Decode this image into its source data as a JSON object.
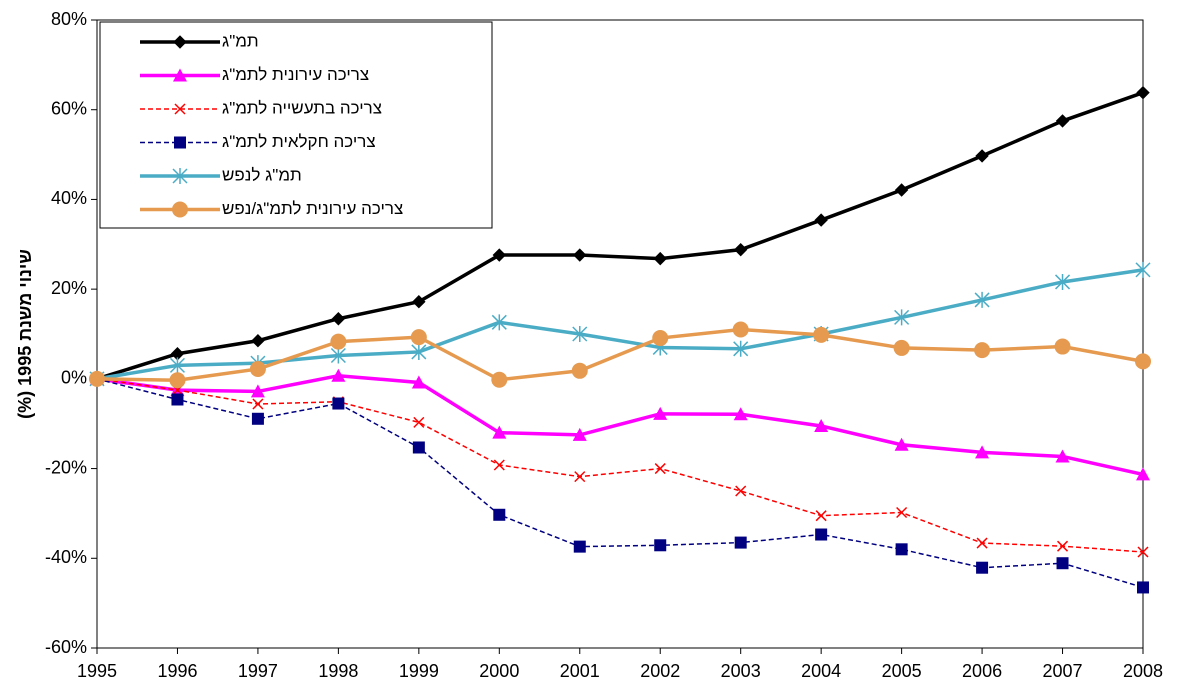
{
  "chart_data": {
    "type": "line",
    "y_label": "שינוי משנת 1995 (%)",
    "x": [
      1995,
      1996,
      1997,
      1998,
      1999,
      2000,
      2001,
      2002,
      2003,
      2004,
      2005,
      2006,
      2007,
      2008
    ],
    "xlim": [
      1995,
      2008
    ],
    "xticks": [
      1995,
      1996,
      1997,
      1998,
      1999,
      2000,
      2001,
      2002,
      2003,
      2004,
      2005,
      2006,
      2007,
      2008
    ],
    "ylim": [
      -60,
      80
    ],
    "yticks": [
      {
        "value": -60,
        "label": "-60%"
      },
      {
        "value": -40,
        "label": "-40%"
      },
      {
        "value": -20,
        "label": "-20%"
      },
      {
        "value": 0,
        "label": "0%"
      },
      {
        "value": 20,
        "label": "20%"
      },
      {
        "value": 40,
        "label": "40%"
      },
      {
        "value": 60,
        "label": "60%"
      },
      {
        "value": 80,
        "label": "80%"
      }
    ],
    "grid": false,
    "legend": "upper left",
    "series": [
      {
        "name": "תמ\"ג",
        "color": "#000000",
        "marker": "diamond",
        "dashed": false,
        "values": [
          0,
          5.6,
          8.5,
          13.4,
          17.2,
          27.6,
          27.6,
          26.8,
          28.8,
          35.4,
          42.1,
          49.7,
          57.5,
          63.8
        ]
      },
      {
        "name": "צריכה עירונית לתמ\"ג",
        "color": "#ff00ff",
        "marker": "triangle",
        "dashed": false,
        "values": [
          0,
          -2.5,
          -2.8,
          0.7,
          -0.8,
          -12,
          -12.5,
          -7.8,
          -7.9,
          -10.5,
          -14.7,
          -16.4,
          -17.3,
          -21.3
        ]
      },
      {
        "name": "צריכה בתעשייה לתמ\"ג",
        "color": "#ff0000",
        "marker": "x",
        "dashed": true,
        "values": [
          0,
          -2.5,
          -5.6,
          -5.1,
          -9.7,
          -19.2,
          -21.8,
          -20,
          -25,
          -30.5,
          -29.8,
          -36.6,
          -37.3,
          -38.6
        ]
      },
      {
        "name": "צריכה חקלאית לתמ\"ג",
        "color": "#000080",
        "marker": "square",
        "dashed": true,
        "values": [
          0,
          -4.6,
          -8.9,
          -5.5,
          -15.3,
          -30.3,
          -37.4,
          -37.1,
          -36.5,
          -34.7,
          -38,
          -42.1,
          -41.1,
          -46.5
        ]
      },
      {
        "name": "תמ\"ג לנפש",
        "color": "#4bacc6",
        "marker": "asterisk",
        "dashed": false,
        "values": [
          0,
          3,
          3.5,
          5.2,
          6,
          12.6,
          10,
          7,
          6.7,
          10,
          13.7,
          17.6,
          21.6,
          24.3
        ]
      },
      {
        "name": "צריכה עירונית לתמ\"ג/נפש",
        "color": "#e59a4f",
        "marker": "circle",
        "dashed": false,
        "values": [
          0,
          -0.3,
          2.2,
          8.3,
          9.3,
          -0.2,
          1.8,
          9.1,
          11,
          9.8,
          6.9,
          6.4,
          7.2,
          3.9
        ]
      }
    ]
  }
}
